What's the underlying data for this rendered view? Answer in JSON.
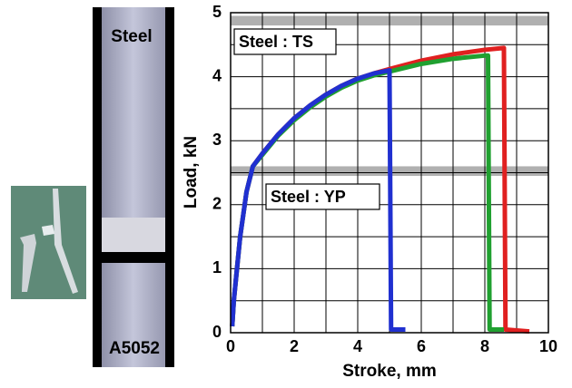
{
  "photo": {
    "labels": [
      "Steel",
      "A5052"
    ]
  },
  "chart_data": {
    "type": "line",
    "xlabel": "Stroke, mm",
    "ylabel": "Load, kN",
    "annotations": [
      "Steel : TS",
      "Steel : YP"
    ],
    "bands": [
      [
        4.8,
        4.95
      ],
      [
        2.45,
        2.6
      ]
    ],
    "xlim": [
      0,
      10
    ],
    "ylim": [
      0,
      5
    ],
    "xticks": [
      0,
      2,
      4,
      6,
      8,
      10
    ],
    "yticks": [
      0,
      1,
      2,
      3,
      4,
      5
    ],
    "minor_xticks": [
      1,
      3,
      5,
      7,
      9
    ],
    "minor_yticks": [
      0.5,
      1.5,
      2.5,
      3.5,
      4.5
    ],
    "grid": true,
    "series": [
      {
        "color": "#e02020",
        "x": [
          0.05,
          0.1,
          0.3,
          0.5,
          0.7,
          1,
          1.5,
          2,
          2.5,
          3,
          3.5,
          4,
          4.5,
          5,
          6,
          7,
          8,
          8.6,
          8.65,
          9.4
        ],
        "values": [
          0.1,
          0.5,
          1.5,
          2.2,
          2.6,
          2.8,
          3.1,
          3.35,
          3.55,
          3.72,
          3.86,
          3.97,
          4.05,
          4.12,
          4.25,
          4.35,
          4.42,
          4.45,
          0.05,
          0.02
        ]
      },
      {
        "color": "#20a030",
        "x": [
          0.05,
          0.1,
          0.3,
          0.5,
          0.7,
          1,
          1.5,
          2,
          2.5,
          3,
          3.5,
          4,
          4.5,
          5,
          6,
          7,
          8,
          8.1,
          8.15,
          8.6
        ],
        "values": [
          0.1,
          0.5,
          1.5,
          2.2,
          2.6,
          2.78,
          3.08,
          3.32,
          3.52,
          3.69,
          3.83,
          3.94,
          4.02,
          4.08,
          4.2,
          4.28,
          4.33,
          4.33,
          0.05,
          0.05
        ]
      },
      {
        "color": "#2030d0",
        "x": [
          0.05,
          0.1,
          0.3,
          0.5,
          0.7,
          1,
          1.5,
          2,
          2.5,
          3,
          3.5,
          4,
          4.5,
          5,
          5.05,
          5.5
        ],
        "values": [
          0.1,
          0.5,
          1.5,
          2.2,
          2.6,
          2.8,
          3.1,
          3.35,
          3.55,
          3.72,
          3.86,
          3.97,
          4.05,
          4.1,
          0.05,
          0.05
        ]
      }
    ]
  }
}
